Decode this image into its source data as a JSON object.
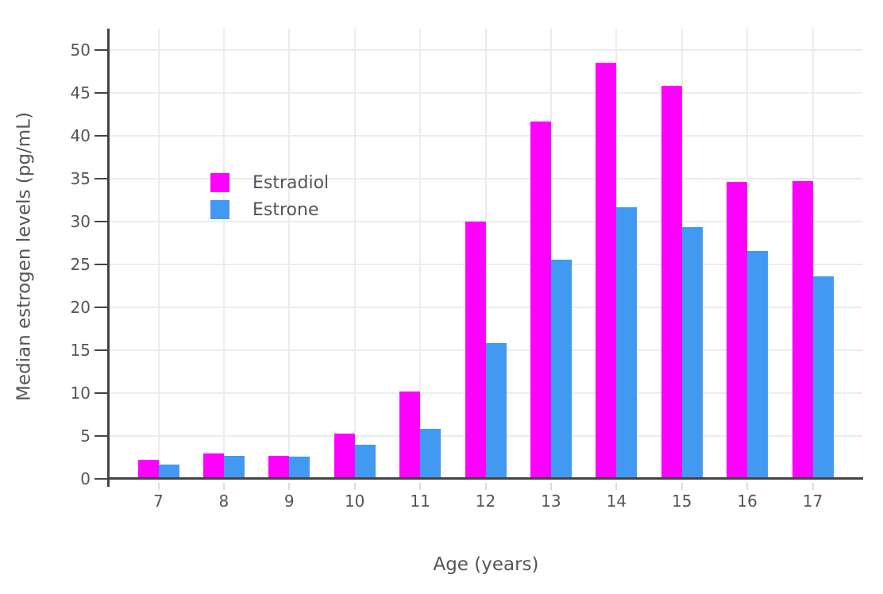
{
  "figure": {
    "background": "#ffffff",
    "colors": {
      "estradiol": "#FF00FF",
      "estrone": "#4299F2",
      "axis_line": "#444444",
      "grid_line": "#ececec",
      "x_tick_mark": "#dddddd",
      "y_tick_mark": "#444444",
      "tick_label": "#555555",
      "axis_title": "#555555",
      "legend_text": "#555555"
    }
  },
  "chart_data": {
    "type": "bar",
    "title": "",
    "xlabel": "Age (years)",
    "ylabel": "Median estrogen levels (pg/mL)",
    "categories": [
      "7",
      "8",
      "9",
      "10",
      "11",
      "12",
      "13",
      "14",
      "15",
      "16",
      "17"
    ],
    "series": [
      {
        "name": "Estradiol",
        "color": "#FF00FF",
        "values": [
          2.2,
          3.0,
          2.7,
          5.3,
          10.2,
          30.0,
          41.6,
          48.5,
          45.8,
          34.6,
          34.7
        ]
      },
      {
        "name": "Estrone",
        "color": "#4299F2",
        "values": [
          1.7,
          2.7,
          2.6,
          4.0,
          5.8,
          15.8,
          25.5,
          31.6,
          29.3,
          26.6,
          23.6
        ]
      }
    ],
    "ylim": [
      0,
      52.5
    ],
    "yticks": [
      0,
      5,
      10,
      15,
      20,
      25,
      30,
      35,
      40,
      45,
      50
    ],
    "grid": true,
    "legend_position": "inside-top-left",
    "bar_orientation": "vertical"
  }
}
